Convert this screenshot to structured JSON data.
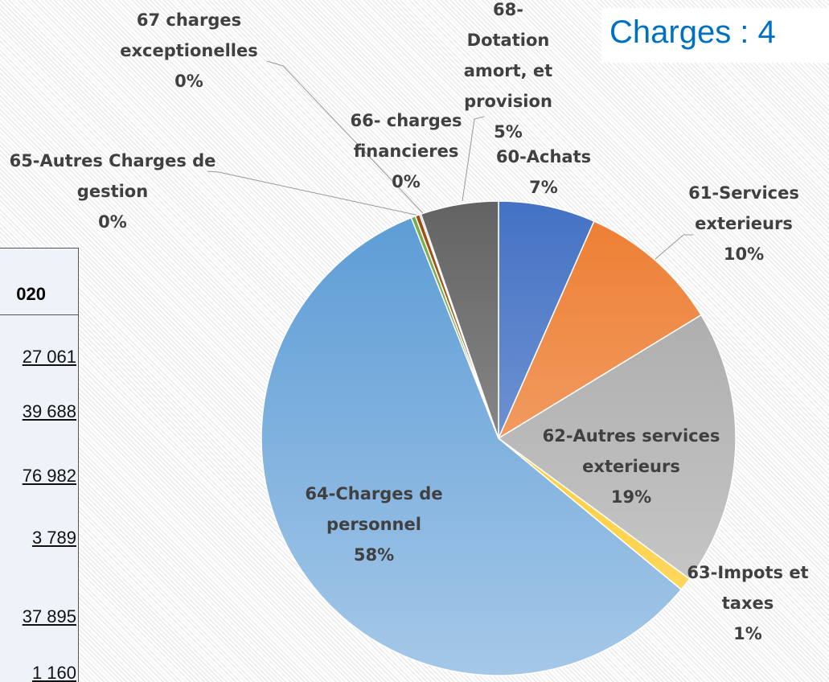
{
  "title": "Charges : 4",
  "table": {
    "header": "020",
    "rows": [
      "27 061",
      "39 688",
      "76 982",
      "3 789",
      "37 895",
      "1 160"
    ]
  },
  "chart_data": {
    "type": "pie",
    "categories": [
      "60-Achats",
      "61-Services exterieurs",
      "62-Autres services exterieurs",
      "63-Impots et taxes",
      "64-Charges de personnel",
      "65-Autres Charges de gestion",
      "66- charges financieres",
      "67 charges exceptionelles",
      "68-Dotation amort, et provision"
    ],
    "values": [
      6.6,
      9.7,
      18.8,
      0.9,
      58.0,
      0.3,
      0.3,
      0.1,
      5.3
    ],
    "value_labels": [
      "7%",
      "10%",
      "19%",
      "1%",
      "58%",
      "0%",
      "0%",
      "0%",
      "5%"
    ],
    "colors": [
      "#4472c4",
      "#ed7d31",
      "#a5a5a5",
      "#ffc000",
      "#5b9bd5",
      "#70ad47",
      "#9e480e",
      "#264478",
      "#636363"
    ]
  }
}
